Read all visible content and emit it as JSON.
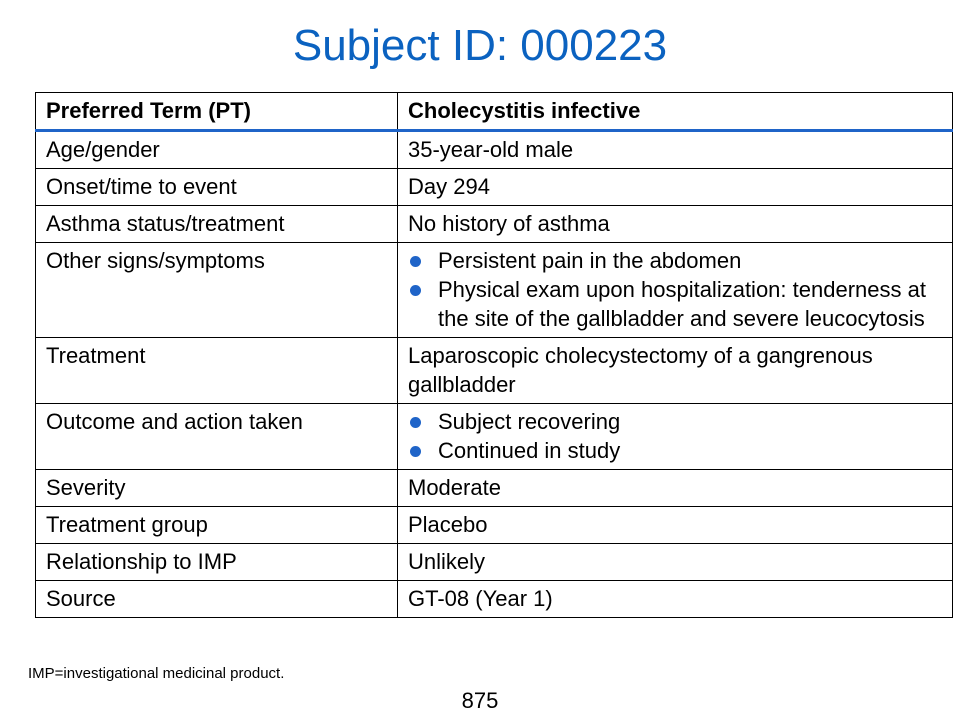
{
  "title": "Subject ID: 000223",
  "colors": {
    "title": "#0b62c0",
    "accent": "#1f64c8"
  },
  "table": {
    "header": {
      "label": "Preferred Term (PT)",
      "value": "Cholecystitis infective"
    },
    "rows": [
      {
        "label": "Age/gender",
        "value": "35-year-old male"
      },
      {
        "label": "Onset/time to event",
        "value": "Day 294"
      },
      {
        "label": "Asthma status/treatment",
        "value": "No history of asthma"
      },
      {
        "label": "Other signs/symptoms",
        "bullets": [
          "Persistent pain in the abdomen",
          "Physical exam upon hospitalization: tenderness at the site of the gallbladder and severe leucocytosis"
        ]
      },
      {
        "label": "Treatment",
        "value": "Laparoscopic cholecystectomy of a gangrenous gallbladder"
      },
      {
        "label": "Outcome and action taken",
        "bullets": [
          "Subject recovering",
          "Continued in study"
        ]
      },
      {
        "label": "Severity",
        "value": "Moderate"
      },
      {
        "label": "Treatment group",
        "value": "Placebo"
      },
      {
        "label": "Relationship to IMP",
        "value": "Unlikely"
      },
      {
        "label": "Source",
        "value": "GT-08 (Year 1)"
      }
    ]
  },
  "footnote": "IMP=investigational medicinal product.",
  "page_number": "875"
}
